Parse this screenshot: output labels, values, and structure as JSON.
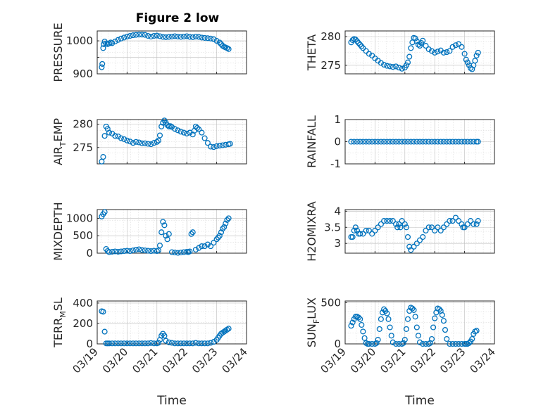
{
  "figure_title": "Figure 2 low",
  "colors": {
    "marker": "#0072BD",
    "axis": "#262626",
    "grid": "#bdbdbd"
  },
  "chart_data": [
    {
      "type": "scatter",
      "id": "pressure",
      "title": "Figure 2 low",
      "ylabel": "PRESSURE",
      "ylabel_parts": [
        "PRESSURE"
      ],
      "xlabel": "",
      "ylim": [
        900,
        1030
      ],
      "yticks": [
        900,
        950,
        1000
      ],
      "ytick_labels": [
        "900",
        "",
        "1000"
      ],
      "xlim": [
        0,
        5
      ],
      "xticks": [
        0,
        1,
        2,
        3,
        4,
        5
      ],
      "xtick_labels": [],
      "x": [
        0.15,
        0.17,
        0.2,
        0.22,
        0.25,
        0.3,
        0.35,
        0.4,
        0.45,
        0.5,
        0.6,
        0.7,
        0.8,
        0.9,
        1.0,
        1.1,
        1.2,
        1.3,
        1.4,
        1.5,
        1.6,
        1.7,
        1.8,
        1.9,
        2.0,
        2.1,
        2.2,
        2.3,
        2.4,
        2.5,
        2.6,
        2.7,
        2.8,
        2.9,
        3.0,
        3.1,
        3.2,
        3.3,
        3.4,
        3.5,
        3.6,
        3.7,
        3.8,
        3.9,
        4.0,
        4.1,
        4.15,
        4.2,
        4.25,
        4.3,
        4.35,
        4.4
      ],
      "y": [
        920,
        930,
        978,
        990,
        998,
        992,
        990,
        992,
        995,
        993,
        998,
        1003,
        1007,
        1010,
        1013,
        1015,
        1017,
        1018,
        1019,
        1019,
        1018,
        1015,
        1013,
        1015,
        1016,
        1014,
        1012,
        1011,
        1012,
        1013,
        1014,
        1013,
        1012,
        1013,
        1014,
        1012,
        1011,
        1013,
        1012,
        1010,
        1009,
        1008,
        1007,
        1005,
        1000,
        995,
        990,
        985,
        982,
        980,
        978,
        975
      ]
    },
    {
      "type": "scatter",
      "id": "theta",
      "ylabel": "THETA",
      "ylabel_parts": [
        "THETA"
      ],
      "xlabel": "",
      "ylim": [
        273.5,
        281
      ],
      "yticks": [
        275,
        280
      ],
      "ytick_labels": [
        "275",
        "280"
      ],
      "xlim": [
        0,
        5
      ],
      "xticks": [
        0,
        1,
        2,
        3,
        4,
        5
      ],
      "xtick_labels": [],
      "x": [
        0.2,
        0.25,
        0.3,
        0.35,
        0.4,
        0.45,
        0.5,
        0.55,
        0.6,
        0.7,
        0.8,
        0.9,
        1.0,
        1.1,
        1.2,
        1.3,
        1.4,
        1.5,
        1.6,
        1.7,
        1.8,
        1.9,
        2.0,
        2.05,
        2.1,
        2.15,
        2.2,
        2.25,
        2.3,
        2.35,
        2.4,
        2.45,
        2.5,
        2.55,
        2.6,
        2.7,
        2.8,
        2.9,
        3.0,
        3.1,
        3.2,
        3.3,
        3.4,
        3.5,
        3.6,
        3.7,
        3.8,
        3.9,
        4.0,
        4.05,
        4.1,
        4.15,
        4.2,
        4.25,
        4.3,
        4.35,
        4.4,
        4.45
      ],
      "y": [
        279,
        279.4,
        279.6,
        279.5,
        279.2,
        278.9,
        278.6,
        278.3,
        278,
        277.5,
        277,
        276.7,
        276.2,
        275.8,
        275.4,
        275.1,
        274.9,
        274.8,
        274.7,
        274.8,
        274.6,
        274.4,
        274.6,
        275,
        275.5,
        276.5,
        278,
        279,
        279.8,
        279.7,
        279.2,
        278.6,
        278.4,
        278.9,
        279.3,
        278.4,
        277.8,
        277.5,
        277.2,
        277.4,
        277.6,
        277.2,
        277.3,
        277.5,
        278.2,
        278.5,
        278.7,
        278.2,
        277,
        276,
        275.5,
        275,
        274.5,
        274.3,
        275,
        275.8,
        276.7,
        277.2
      ]
    },
    {
      "type": "scatter",
      "id": "air-temp",
      "ylabel": "AIR_TEMP",
      "ylabel_parts": [
        "AIR",
        "T",
        "EMP"
      ],
      "xlabel": "",
      "ylim": [
        271.5,
        281
      ],
      "yticks": [
        275,
        280
      ],
      "ytick_labels": [
        "275",
        "280"
      ],
      "xlim": [
        0,
        5
      ],
      "xticks": [
        0,
        1,
        2,
        3,
        4,
        5
      ],
      "xtick_labels": [],
      "x": [
        0.15,
        0.2,
        0.25,
        0.3,
        0.35,
        0.4,
        0.5,
        0.6,
        0.7,
        0.8,
        0.9,
        1.0,
        1.1,
        1.2,
        1.3,
        1.4,
        1.5,
        1.6,
        1.7,
        1.8,
        1.9,
        2.0,
        2.05,
        2.1,
        2.15,
        2.2,
        2.25,
        2.3,
        2.35,
        2.4,
        2.45,
        2.5,
        2.6,
        2.7,
        2.8,
        2.9,
        3.0,
        3.1,
        3.2,
        3.25,
        3.3,
        3.35,
        3.4,
        3.5,
        3.6,
        3.7,
        3.8,
        3.9,
        4.0,
        4.1,
        4.2,
        4.3,
        4.4,
        4.45
      ],
      "y": [
        272,
        273,
        277.5,
        279.5,
        279,
        278.2,
        278,
        277.5,
        277.4,
        277,
        276.8,
        276.5,
        276.3,
        276,
        276.2,
        276.1,
        275.9,
        275.9,
        275.8,
        275.7,
        276,
        276.2,
        276.5,
        277.6,
        279.5,
        280.3,
        280.8,
        280.3,
        279.8,
        279.5,
        279.6,
        279.4,
        279,
        278.7,
        278.4,
        278.2,
        278,
        278.2,
        277.8,
        278.6,
        279.5,
        279.2,
        278.9,
        278.2,
        277,
        276,
        275.2,
        275.1,
        275.3,
        275.4,
        275.5,
        275.6,
        275.7,
        275.8
      ]
    },
    {
      "type": "scatter",
      "id": "rainfall",
      "ylabel": "RAINFALL",
      "ylabel_parts": [
        "RAINFALL"
      ],
      "xlabel": "",
      "ylim": [
        -1,
        1
      ],
      "yticks": [
        -1,
        0,
        1
      ],
      "ytick_labels": [
        "-1",
        "0",
        "1"
      ],
      "xlim": [
        0,
        5
      ],
      "xticks": [
        0,
        1,
        2,
        3,
        4,
        5
      ],
      "xtick_labels": [],
      "x": [
        0.2,
        0.3,
        0.4,
        0.5,
        0.6,
        0.7,
        0.8,
        0.9,
        1.0,
        1.1,
        1.2,
        1.3,
        1.4,
        1.5,
        1.6,
        1.7,
        1.8,
        1.9,
        2.0,
        2.1,
        2.2,
        2.3,
        2.4,
        2.5,
        2.6,
        2.7,
        2.8,
        2.9,
        3.0,
        3.1,
        3.2,
        3.3,
        3.4,
        3.5,
        3.6,
        3.7,
        3.8,
        3.9,
        4.0,
        4.1,
        4.2,
        4.3,
        4.4,
        4.45
      ],
      "y": [
        0,
        0,
        0,
        0,
        0,
        0,
        0,
        0,
        0,
        0,
        0,
        0,
        0,
        0,
        0,
        0,
        0,
        0,
        0,
        0,
        0,
        0,
        0,
        0,
        0,
        0,
        0,
        0,
        0,
        0,
        0,
        0,
        0,
        0,
        0,
        0,
        0,
        0,
        0,
        0,
        0,
        0,
        0,
        0
      ]
    },
    {
      "type": "scatter",
      "id": "mixdepth",
      "ylabel": "MIXDEPTH",
      "ylabel_parts": [
        "MIXDEPTH"
      ],
      "xlabel": "",
      "ylim": [
        0,
        1250
      ],
      "yticks": [
        0,
        500,
        1000
      ],
      "ytick_labels": [
        "0",
        "500",
        "1000"
      ],
      "xlim": [
        0,
        5
      ],
      "xticks": [
        0,
        1,
        2,
        3,
        4,
        5
      ],
      "xtick_labels": [],
      "x": [
        0.15,
        0.2,
        0.25,
        0.3,
        0.35,
        0.4,
        0.5,
        0.6,
        0.7,
        0.8,
        0.9,
        1.0,
        1.1,
        1.2,
        1.3,
        1.4,
        1.5,
        1.6,
        1.7,
        1.8,
        1.9,
        2.0,
        2.05,
        2.1,
        2.15,
        2.2,
        2.25,
        2.3,
        2.35,
        2.4,
        2.5,
        2.6,
        2.7,
        2.8,
        2.9,
        3.0,
        3.05,
        3.1,
        3.15,
        3.2,
        3.3,
        3.4,
        3.5,
        3.6,
        3.7,
        3.8,
        3.9,
        4.0,
        4.05,
        4.1,
        4.15,
        4.2,
        4.25,
        4.3,
        4.35,
        4.4
      ],
      "y": [
        1050,
        1120,
        1180,
        120,
        60,
        30,
        40,
        50,
        40,
        50,
        60,
        70,
        60,
        80,
        100,
        110,
        90,
        80,
        70,
        60,
        70,
        60,
        80,
        220,
        600,
        900,
        800,
        500,
        400,
        550,
        30,
        20,
        10,
        20,
        30,
        40,
        30,
        50,
        550,
        600,
        100,
        150,
        200,
        200,
        250,
        200,
        300,
        400,
        450,
        500,
        600,
        700,
        750,
        850,
        950,
        1000
      ]
    },
    {
      "type": "scatter",
      "id": "h2omixra",
      "ylabel": "H2OMIXRA",
      "ylabel_parts": [
        "H2OMIXRA"
      ],
      "xlabel": "",
      "ylim": [
        2.7,
        4.05
      ],
      "yticks": [
        3,
        3.5,
        4
      ],
      "ytick_labels": [
        "3",
        "3.5",
        "4"
      ],
      "xlim": [
        0,
        5
      ],
      "xticks": [
        0,
        1,
        2,
        3,
        4,
        5
      ],
      "xtick_labels": [],
      "x": [
        0.2,
        0.25,
        0.3,
        0.35,
        0.4,
        0.45,
        0.5,
        0.6,
        0.7,
        0.8,
        0.9,
        1.0,
        1.1,
        1.2,
        1.3,
        1.4,
        1.5,
        1.6,
        1.7,
        1.75,
        1.8,
        1.85,
        1.9,
        2.0,
        2.05,
        2.1,
        2.15,
        2.2,
        2.3,
        2.4,
        2.5,
        2.6,
        2.7,
        2.8,
        2.9,
        3.0,
        3.1,
        3.2,
        3.3,
        3.4,
        3.5,
        3.6,
        3.7,
        3.8,
        3.9,
        3.95,
        4.0,
        4.1,
        4.2,
        4.3,
        4.4,
        4.45
      ],
      "y": [
        3.2,
        3.2,
        3.4,
        3.5,
        3.4,
        3.3,
        3.3,
        3.3,
        3.4,
        3.4,
        3.3,
        3.4,
        3.5,
        3.6,
        3.7,
        3.7,
        3.7,
        3.7,
        3.6,
        3.5,
        3.6,
        3.5,
        3.7,
        3.6,
        3.5,
        3.2,
        2.9,
        2.8,
        2.9,
        3.0,
        3.1,
        3.2,
        3.4,
        3.5,
        3.5,
        3.4,
        3.5,
        3.4,
        3.5,
        3.6,
        3.7,
        3.7,
        3.8,
        3.7,
        3.6,
        3.5,
        3.5,
        3.6,
        3.7,
        3.6,
        3.6,
        3.7
      ]
    },
    {
      "type": "scatter",
      "id": "terr-msl",
      "ylabel": "TERR_MSL",
      "ylabel_parts": [
        "TERR",
        "M",
        "SL"
      ],
      "xlabel": "Time",
      "ylim": [
        0,
        420
      ],
      "yticks": [
        0,
        200,
        400
      ],
      "ytick_labels": [
        "0",
        "200",
        "400"
      ],
      "xlim": [
        0,
        5
      ],
      "xticks": [
        0,
        1,
        2,
        3,
        4,
        5
      ],
      "xtick_labels": [
        "03/19",
        "03/20",
        "03/21",
        "03/22",
        "03/23",
        "03/24"
      ],
      "x": [
        0.15,
        0.2,
        0.25,
        0.3,
        0.35,
        0.4,
        0.5,
        0.6,
        0.7,
        0.8,
        0.9,
        1.0,
        1.1,
        1.2,
        1.3,
        1.4,
        1.5,
        1.6,
        1.7,
        1.8,
        1.9,
        2.0,
        2.05,
        2.1,
        2.15,
        2.2,
        2.25,
        2.3,
        2.4,
        2.5,
        2.6,
        2.7,
        2.8,
        2.9,
        3.0,
        3.1,
        3.2,
        3.3,
        3.4,
        3.5,
        3.6,
        3.7,
        3.8,
        3.9,
        4.0,
        4.05,
        4.1,
        4.15,
        4.2,
        4.25,
        4.3,
        4.35,
        4.4
      ],
      "y": [
        320,
        315,
        120,
        5,
        5,
        5,
        5,
        5,
        5,
        5,
        5,
        5,
        5,
        5,
        5,
        5,
        5,
        5,
        5,
        8,
        5,
        5,
        10,
        40,
        80,
        100,
        80,
        30,
        15,
        10,
        5,
        5,
        5,
        5,
        5,
        5,
        5,
        10,
        5,
        5,
        5,
        5,
        10,
        20,
        40,
        60,
        80,
        100,
        110,
        120,
        130,
        140,
        150
      ]
    },
    {
      "type": "scatter",
      "id": "sun-flux",
      "ylabel": "SUN_FLUX",
      "ylabel_parts": [
        "SUN",
        "F",
        "LUX"
      ],
      "xlabel": "Time",
      "ylim": [
        0,
        520
      ],
      "yticks": [
        0,
        500
      ],
      "ytick_labels": [
        "0",
        "500"
      ],
      "xlim": [
        0,
        5
      ],
      "xticks": [
        0,
        1,
        2,
        3,
        4,
        5
      ],
      "xtick_labels": [
        "03/19",
        "03/20",
        "03/21",
        "03/22",
        "03/23",
        "03/24"
      ],
      "x": [
        0.2,
        0.25,
        0.3,
        0.35,
        0.4,
        0.45,
        0.5,
        0.55,
        0.6,
        0.65,
        0.7,
        0.75,
        0.8,
        0.9,
        1.0,
        1.05,
        1.1,
        1.15,
        1.2,
        1.25,
        1.3,
        1.35,
        1.4,
        1.45,
        1.5,
        1.55,
        1.6,
        1.7,
        1.8,
        1.9,
        1.95,
        2.0,
        2.05,
        2.1,
        2.15,
        2.2,
        2.25,
        2.3,
        2.35,
        2.4,
        2.45,
        2.5,
        2.6,
        2.7,
        2.8,
        2.85,
        2.9,
        2.95,
        3.0,
        3.05,
        3.1,
        3.15,
        3.2,
        3.25,
        3.3,
        3.35,
        3.4,
        3.5,
        3.6,
        3.7,
        3.8,
        3.9,
        4.0,
        4.05,
        4.1,
        4.15,
        4.2,
        4.25,
        4.3,
        4.35,
        4.4
      ],
      "y": [
        220,
        260,
        300,
        330,
        330,
        320,
        300,
        230,
        150,
        70,
        10,
        0,
        0,
        0,
        0,
        10,
        50,
        180,
        300,
        380,
        420,
        400,
        370,
        300,
        200,
        100,
        20,
        0,
        0,
        0,
        10,
        50,
        180,
        300,
        400,
        440,
        430,
        410,
        330,
        200,
        100,
        20,
        0,
        0,
        0,
        10,
        60,
        200,
        310,
        380,
        430,
        420,
        400,
        350,
        280,
        170,
        60,
        0,
        0,
        0,
        0,
        0,
        0,
        0,
        0,
        10,
        30,
        60,
        120,
        150,
        160
      ]
    }
  ]
}
